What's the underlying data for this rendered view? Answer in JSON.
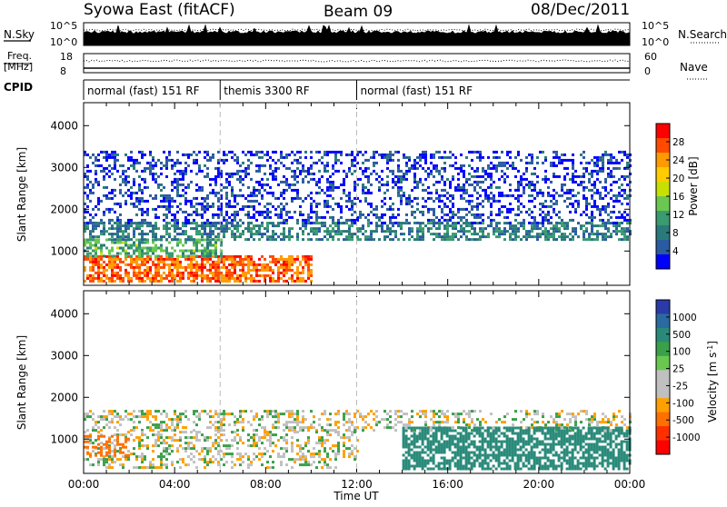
{
  "header": {
    "station": "Syowa East (fitACF)",
    "beam": "Beam 09",
    "date": "08/Dec/2011"
  },
  "side_labels": {
    "nsky": "N.Sky",
    "nsearch": "N.Search",
    "nsky_ticks": [
      "10^5",
      "10^0"
    ],
    "nsearch_ticks": [
      "10^5",
      "10^0"
    ],
    "freq_line1": "Freq.",
    "freq_line2": "[MHz]",
    "freq_ticks": [
      "18",
      "8"
    ],
    "nave": "Nave",
    "nave_ticks": [
      "60",
      "0"
    ],
    "cpid": "CPID"
  },
  "cpid_segments": [
    {
      "label": "normal (fast) 151 RF",
      "start": 0,
      "end": 6
    },
    {
      "label": "themis 3300 RF",
      "start": 6,
      "end": 12
    },
    {
      "label": "normal (fast) 151 RF",
      "start": 12,
      "end": 24
    }
  ],
  "power_colorbar": {
    "label": "Power [dB]",
    "ticks": [
      "28",
      "24",
      "20",
      "16",
      "12",
      "8",
      "4"
    ],
    "colors": [
      "#ff0000",
      "#ff4a00",
      "#ff9a00",
      "#ffcc00",
      "#c8e000",
      "#6ac850",
      "#3a9a70",
      "#2a7a7a",
      "#2a5aa0",
      "#0000ff"
    ]
  },
  "velocity_colorbar": {
    "label_main": "Velocity [m s",
    "label_exp": "-1",
    "label_end": "]",
    "ticks": [
      "1000",
      "500",
      "100",
      "25",
      "-25",
      "-100",
      "-500",
      "-1000"
    ],
    "colors": [
      "#2a3aa8",
      "#2a6aa0",
      "#2a8a7a",
      "#3aa04a",
      "#6ac850",
      "#c0c0c0",
      "#c0c0c0",
      "#ffa000",
      "#ff7000",
      "#ff3000",
      "#ff0000"
    ]
  },
  "chart_data": [
    {
      "type": "heatmap",
      "panel": "power",
      "ylabel": "Slant Range [km]",
      "xlabel": "Time UT",
      "xlim": [
        0,
        24
      ],
      "ylim": [
        180,
        4550
      ],
      "xticks": [
        "00:00",
        "04:00",
        "08:00",
        "12:00",
        "16:00",
        "20:00",
        "00:00"
      ],
      "yticks": [
        1000,
        2000,
        3000,
        4000
      ],
      "echo_bands": [
        {
          "t0": 0,
          "t1": 10,
          "r0": 300,
          "r1": 900,
          "value": 28
        },
        {
          "t0": 0,
          "t1": 6,
          "r0": 900,
          "r1": 1300,
          "value": 14
        },
        {
          "t0": 0,
          "t1": 24,
          "r0": 1300,
          "r1": 1700,
          "value": 10
        },
        {
          "t0": 0,
          "t1": 24,
          "r0": 1700,
          "r1": 3400,
          "value": 5
        }
      ]
    },
    {
      "type": "heatmap",
      "panel": "velocity",
      "ylabel": "Slant Range [km]",
      "xlabel": "Time UT",
      "xlim": [
        0,
        24
      ],
      "ylim": [
        180,
        4550
      ],
      "xticks": [
        "00:00",
        "04:00",
        "08:00",
        "12:00",
        "16:00",
        "20:00",
        "00:00"
      ],
      "yticks": [
        1000,
        2000,
        3000,
        4000
      ],
      "echo_bands": [
        {
          "t0": 0,
          "t1": 24,
          "r0": 1200,
          "r1": 1700,
          "value": 0
        },
        {
          "t0": 0,
          "t1": 12,
          "r0": 300,
          "r1": 1200,
          "value": 0
        },
        {
          "t0": 0,
          "t1": 2,
          "r0": 600,
          "r1": 1100,
          "value": -200
        },
        {
          "t0": 14,
          "t1": 24,
          "r0": 300,
          "r1": 1300,
          "value": 200
        }
      ]
    }
  ],
  "xaxis": {
    "ticks": [
      "00:00",
      "04:00",
      "08:00",
      "12:00",
      "16:00",
      "20:00",
      "00:00"
    ],
    "label": "Time UT"
  },
  "yaxis": {
    "label": "Slant Range [km]",
    "ticks": [
      "1000",
      "2000",
      "3000",
      "4000"
    ]
  }
}
